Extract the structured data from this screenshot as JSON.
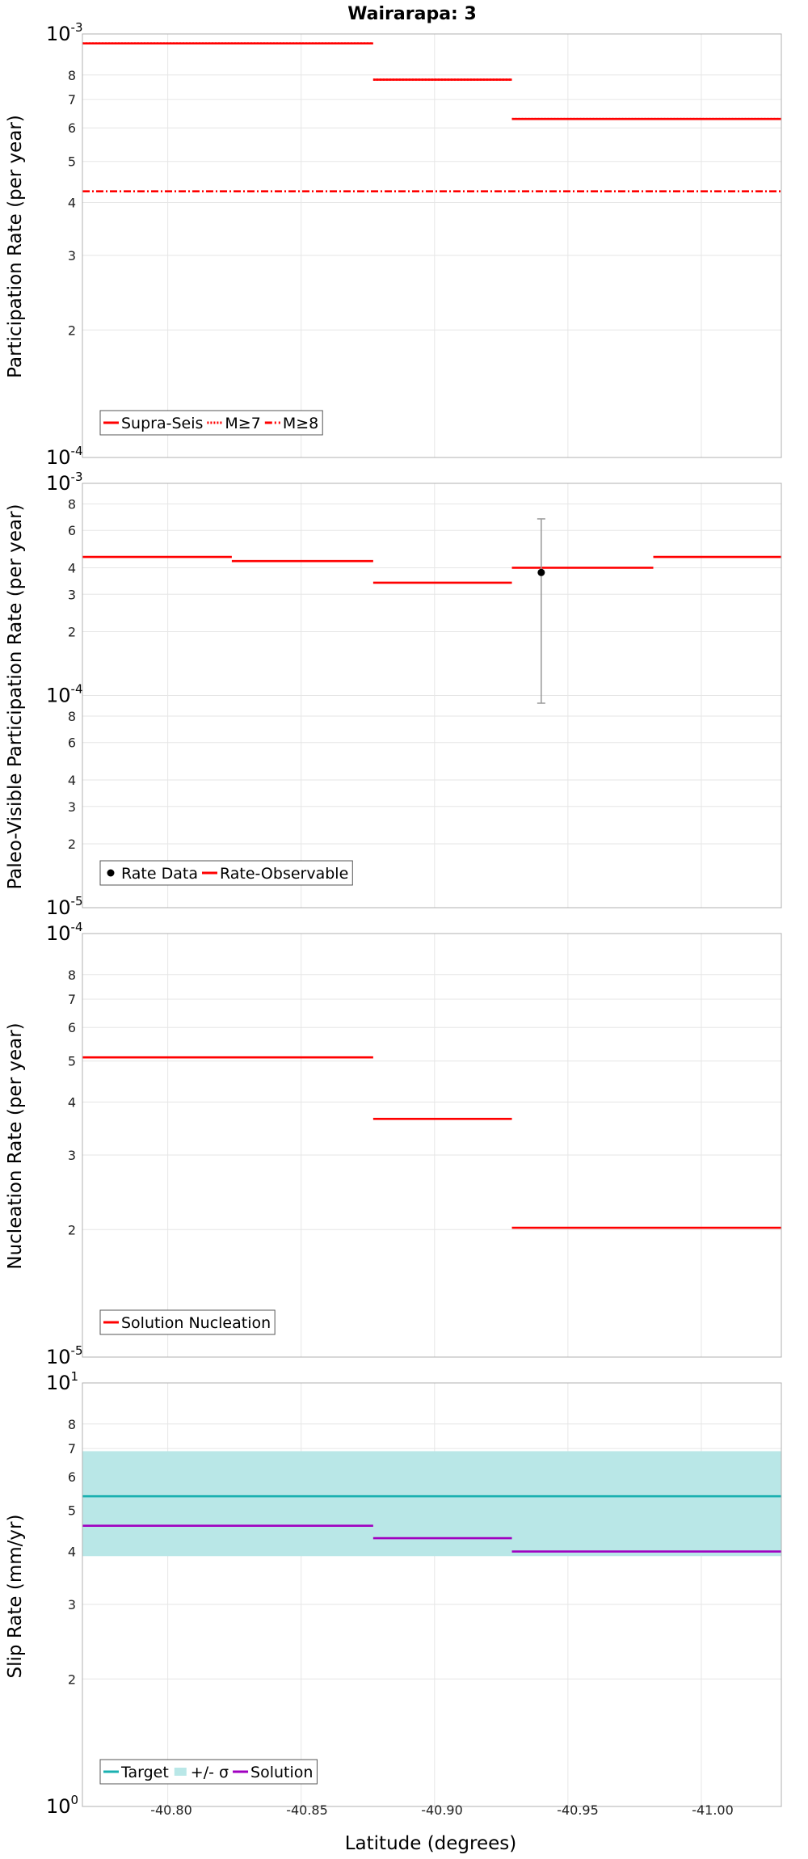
{
  "title": "Wairarapa: 3",
  "xlabel": "Latitude (degrees)",
  "xticks": [
    "-40.80",
    "-40.85",
    "-40.90",
    "-40.95",
    "-41.00"
  ],
  "colors": {
    "red": "#ff0000",
    "teal": "#1ab0b0",
    "band": "#b9e7e7",
    "purple": "#a000c0",
    "grid": "#e6e6e6",
    "errorbar": "#999999"
  },
  "chart_data": [
    {
      "type": "line",
      "title": "Wairarapa: 3",
      "xlabel": "Latitude (degrees)",
      "ylabel": "Participation Rate (per year)",
      "yscale": "log",
      "ylim": [
        0.0001,
        0.001
      ],
      "xlim": [
        -40.768,
        -41.03
      ],
      "decade_labels": [
        {
          "base": "10",
          "exp": "-3",
          "value": 0.001
        },
        {
          "base": "10",
          "exp": "-4",
          "value": 0.0001
        }
      ],
      "minor_ticks": [
        {
          "label": "8",
          "value": 0.0008
        },
        {
          "label": "7",
          "value": 0.0007
        },
        {
          "label": "6",
          "value": 0.0006
        },
        {
          "label": "5",
          "value": 0.0005
        },
        {
          "label": "4",
          "value": 0.0004
        },
        {
          "label": "3",
          "value": 0.0003
        },
        {
          "label": "2",
          "value": 0.0002
        }
      ],
      "series": [
        {
          "name": "Supra-Seis",
          "style": "solid",
          "color": "#ff0000",
          "segments": [
            [
              -40.768,
              -40.877,
              0.00095
            ],
            [
              -40.877,
              -40.929,
              0.00078
            ],
            [
              -40.929,
              -41.03,
              0.00063
            ]
          ]
        },
        {
          "name": "M≥7",
          "style": "dotted",
          "color": "#ff0000",
          "segments": [
            [
              -40.768,
              -40.877,
              0.00095
            ],
            [
              -40.877,
              -40.929,
              0.00078
            ],
            [
              -40.929,
              -41.03,
              0.00063
            ]
          ]
        },
        {
          "name": "M≥8",
          "style": "dashdot",
          "color": "#ff0000",
          "segments": [
            [
              -40.768,
              -41.03,
              0.000425
            ]
          ]
        }
      ],
      "legend": [
        "Supra-Seis",
        "M≥7",
        "M≥8"
      ],
      "legend_position": "bottom-left"
    },
    {
      "type": "line",
      "ylabel": "Paleo-Visible Participation Rate (per year)",
      "yscale": "log",
      "ylim": [
        1e-05,
        0.001
      ],
      "xlim": [
        -40.768,
        -41.03
      ],
      "decade_labels": [
        {
          "base": "10",
          "exp": "-3",
          "value": 0.001
        },
        {
          "base": "10",
          "exp": "-4",
          "value": 0.0001
        },
        {
          "base": "10",
          "exp": "-5",
          "value": 1e-05
        }
      ],
      "minor_ticks": [
        {
          "label": "8",
          "value": 0.0008
        },
        {
          "label": "6",
          "value": 0.0006
        },
        {
          "label": "4",
          "value": 0.0004
        },
        {
          "label": "3",
          "value": 0.0003
        },
        {
          "label": "2",
          "value": 0.0002
        },
        {
          "label": "8",
          "value": 8e-05
        },
        {
          "label": "6",
          "value": 6e-05
        },
        {
          "label": "4",
          "value": 4e-05
        },
        {
          "label": "3",
          "value": 3e-05
        },
        {
          "label": "2",
          "value": 2e-05
        }
      ],
      "series": [
        {
          "name": "Rate-Observable",
          "style": "solid",
          "color": "#ff0000",
          "segments": [
            [
              -40.768,
              -40.824,
              0.00045
            ],
            [
              -40.824,
              -40.877,
              0.00043
            ],
            [
              -40.877,
              -40.929,
              0.00034
            ],
            [
              -40.929,
              -40.982,
              0.0004
            ],
            [
              -40.982,
              -41.03,
              0.00045
            ]
          ]
        }
      ],
      "points": [
        {
          "name": "Rate Data",
          "x": -40.94,
          "y": 0.00038,
          "y_low": 9.2e-05,
          "y_high": 0.00068
        }
      ],
      "legend": [
        "Rate Data",
        "Rate-Observable"
      ],
      "legend_position": "bottom-left"
    },
    {
      "type": "line",
      "ylabel": "Nucleation Rate (per year)",
      "yscale": "log",
      "ylim": [
        1e-05,
        0.0001
      ],
      "xlim": [
        -40.768,
        -41.03
      ],
      "decade_labels": [
        {
          "base": "10",
          "exp": "-4",
          "value": 0.0001
        },
        {
          "base": "10",
          "exp": "-5",
          "value": 1e-05
        }
      ],
      "minor_ticks": [
        {
          "label": "8",
          "value": 8e-05
        },
        {
          "label": "7",
          "value": 7e-05
        },
        {
          "label": "6",
          "value": 6e-05
        },
        {
          "label": "5",
          "value": 5e-05
        },
        {
          "label": "4",
          "value": 4e-05
        },
        {
          "label": "3",
          "value": 3e-05
        },
        {
          "label": "2",
          "value": 2e-05
        }
      ],
      "series": [
        {
          "name": "Solution Nucleation",
          "style": "solid",
          "color": "#ff0000",
          "segments": [
            [
              -40.768,
              -40.877,
              5.1e-05
            ],
            [
              -40.877,
              -40.929,
              3.65e-05
            ],
            [
              -40.929,
              -41.03,
              2.02e-05
            ]
          ]
        }
      ],
      "legend": [
        "Solution Nucleation"
      ],
      "legend_position": "bottom-left"
    },
    {
      "type": "line",
      "ylabel": "Slip Rate (mm/yr)",
      "yscale": "log",
      "ylim": [
        1,
        10
      ],
      "xlim": [
        -40.768,
        -41.03
      ],
      "decade_labels": [
        {
          "base": "10",
          "exp": "1",
          "value": 10
        },
        {
          "base": "10",
          "exp": "0",
          "value": 1
        }
      ],
      "minor_ticks": [
        {
          "label": "8",
          "value": 8
        },
        {
          "label": "7",
          "value": 7
        },
        {
          "label": "6",
          "value": 6
        },
        {
          "label": "5",
          "value": 5
        },
        {
          "label": "4",
          "value": 4
        },
        {
          "label": "3",
          "value": 3
        },
        {
          "label": "2",
          "value": 2
        }
      ],
      "band": {
        "name": "+/- σ",
        "low": 3.9,
        "high": 6.9
      },
      "series": [
        {
          "name": "Target",
          "style": "solid",
          "color": "#1ab0b0",
          "segments": [
            [
              -40.768,
              -41.03,
              5.4
            ]
          ]
        },
        {
          "name": "Solution",
          "style": "solid",
          "color": "#a000c0",
          "segments": [
            [
              -40.768,
              -40.877,
              4.6
            ],
            [
              -40.877,
              -40.929,
              4.3
            ],
            [
              -40.929,
              -41.03,
              4.0
            ]
          ]
        }
      ],
      "legend": [
        "Target",
        "+/- σ",
        "Solution"
      ],
      "legend_position": "bottom-left"
    }
  ]
}
